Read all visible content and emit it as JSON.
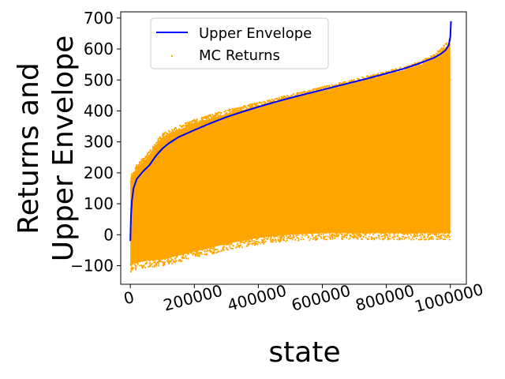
{
  "chart_data": {
    "type": "scatter",
    "title": "",
    "xlabel": "state",
    "ylabel_lines": [
      "Returns and",
      "Upper Envelope"
    ],
    "xlim": [
      -30000,
      1050000
    ],
    "ylim": [
      -160,
      720
    ],
    "xticks": [
      0,
      200000,
      400000,
      600000,
      800000,
      1000000
    ],
    "xtick_labels": [
      "0",
      "200000",
      "400000",
      "600000",
      "800000",
      "1000000"
    ],
    "yticks": [
      -100,
      0,
      100,
      200,
      300,
      400,
      500,
      600,
      700
    ],
    "ytick_labels": [
      "−100",
      "0",
      "100",
      "200",
      "300",
      "400",
      "500",
      "600",
      "700"
    ],
    "grid": false,
    "legend_position": "top-left",
    "series": [
      {
        "name": "Upper Envelope",
        "type": "line",
        "color": "#0000ff",
        "x": [
          0,
          2000,
          5000,
          10000,
          20000,
          40000,
          60000,
          80000,
          100000,
          120000,
          150000,
          200000,
          250000,
          300000,
          350000,
          400000,
          450000,
          500000,
          550000,
          600000,
          650000,
          700000,
          750000,
          800000,
          850000,
          900000,
          950000,
          970000,
          985000,
          995000,
          1000000,
          1002000
        ],
        "y": [
          -20,
          60,
          110,
          150,
          180,
          205,
          225,
          255,
          278,
          295,
          315,
          338,
          360,
          380,
          397,
          413,
          428,
          442,
          455,
          468,
          481,
          494,
          507,
          521,
          535,
          552,
          572,
          584,
          596,
          612,
          640,
          690
        ]
      },
      {
        "name": "MC Returns",
        "type": "scatter",
        "color": "#ffa500",
        "band": {
          "x": [
            0,
            20000,
            50000,
            100000,
            200000,
            300000,
            400000,
            500000,
            600000,
            700000,
            800000,
            900000,
            950000,
            1000000
          ],
          "upper": [
            175,
            215,
            245,
            315,
            360,
            390,
            415,
            440,
            465,
            490,
            515,
            545,
            570,
            620
          ],
          "lower": [
            -100,
            -90,
            -85,
            -80,
            -55,
            -30,
            -10,
            0,
            5,
            5,
            5,
            5,
            5,
            5
          ]
        }
      }
    ]
  }
}
